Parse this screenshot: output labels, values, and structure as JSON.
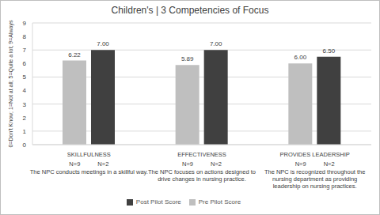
{
  "chart_data": {
    "type": "bar",
    "title": "Children's | 3 Competencies of Focus",
    "y_label": "0=Don't Know; 1=Not at all; 5=Quite a lot; 9=Always",
    "categories": [
      "SKILLFULNESS",
      "EFFECTIVENESS",
      "PROVIDES LEADERSHIP"
    ],
    "descriptions": [
      [
        "The NPC conducts meetings in a skillful way."
      ],
      [
        "The NPC focuses on actions designed to",
        "drive changes in nursing practice."
      ],
      [
        "The NPC is recognized throughout the",
        "nursing department as providing",
        "leadership on nursing practices."
      ]
    ],
    "series": [
      {
        "name": "Pre Pilot Score",
        "color": "#bfbfbf",
        "values": [
          6.22,
          5.89,
          6.0
        ],
        "value_labels": [
          "6.22",
          "5.89",
          "6.00"
        ],
        "n_labels": [
          "N=9",
          "N=9",
          "N=9"
        ]
      },
      {
        "name": "Post Pilot Score",
        "color": "#404040",
        "values": [
          7,
          7,
          6.5
        ],
        "value_labels": [
          "7.00",
          "7.00",
          "6.50"
        ],
        "n_labels": [
          "N=2",
          "N=2",
          "N=2"
        ]
      }
    ],
    "ylim": [
      0,
      9
    ],
    "yticks": [
      0,
      1,
      2,
      3,
      4,
      5,
      6,
      7,
      8,
      9
    ],
    "grid": true,
    "legend": "bottom",
    "data_labels": true
  }
}
